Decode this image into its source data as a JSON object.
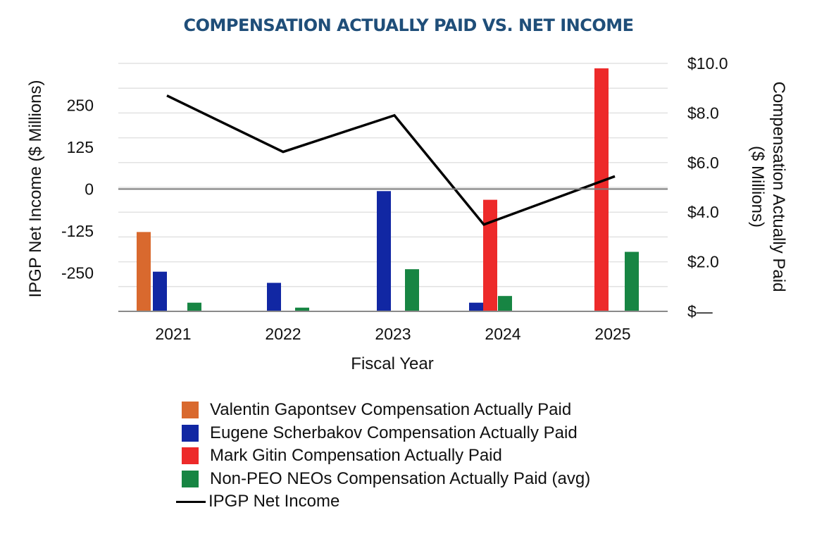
{
  "chart_data": {
    "type": "bar",
    "title": "COMPENSATION ACTUALLY PAID VS. NET INCOME",
    "xlabel": "Fiscal Year",
    "ylabel_left": "IPGP Net Income ($ Millions)",
    "ylabel_right": "Compensation Actually Paid ($ Millions)",
    "categories": [
      "2021",
      "2022",
      "2023",
      "2024",
      "2025"
    ],
    "left_axis": {
      "ylim": [
        -365,
        375
      ],
      "ticks": [
        250,
        125,
        0,
        -125,
        -250
      ],
      "tick_labels": [
        "250",
        "125",
        "0",
        "-125",
        "-250"
      ]
    },
    "right_axis": {
      "ylim": [
        0,
        10
      ],
      "ticks": [
        0,
        2,
        4,
        6,
        8,
        10
      ],
      "tick_labels": [
        "$—",
        "$2.0",
        "$4.0",
        "$6.0",
        "$8.0",
        "$10.0"
      ]
    },
    "series": [
      {
        "name": "Valentin Gapontsev Compensation Actually Paid",
        "axis": "right",
        "color": "#d9692e",
        "values": [
          3.2,
          null,
          null,
          null,
          null
        ]
      },
      {
        "name": "Eugene Scherbakov Compensation Actually Paid",
        "axis": "right",
        "color": "#1127a3",
        "values": [
          1.6,
          1.15,
          4.85,
          0.35,
          null
        ]
      },
      {
        "name": "Mark Gitin Compensation Actually Paid",
        "axis": "right",
        "color": "#ed2a2a",
        "values": [
          null,
          null,
          null,
          4.5,
          9.8
        ]
      },
      {
        "name": "Non-PEO NEOs Compensation Actually Paid (avg)",
        "axis": "right",
        "color": "#178543",
        "values": [
          0.35,
          0.15,
          1.7,
          0.62,
          2.4
        ]
      },
      {
        "name": "IPGP Net Income",
        "axis": "left",
        "type": "line",
        "color": "#000000",
        "values": [
          279,
          111,
          220,
          -106,
          38
        ]
      }
    ],
    "grid": true,
    "legend_position": "bottom"
  }
}
